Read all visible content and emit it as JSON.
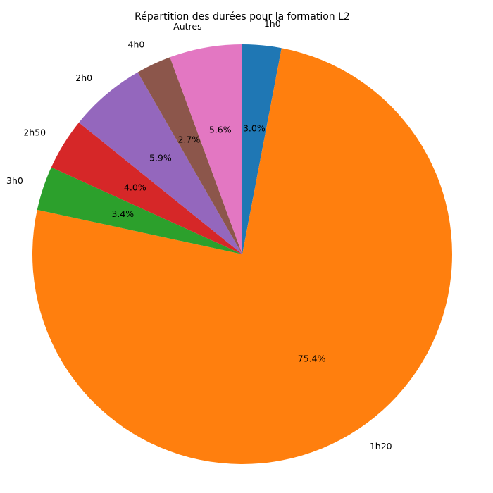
{
  "chart_data": {
    "type": "pie",
    "title": "Répartition des durées pour la formation L2",
    "start_angle_deg": 90,
    "direction": "clockwise",
    "slices": [
      {
        "label": "1h0",
        "value": 3.0,
        "pct_label": "3.0%",
        "color": "#1f77b4"
      },
      {
        "label": "1h20",
        "value": 75.4,
        "pct_label": "75.4%",
        "color": "#ff7f0e"
      },
      {
        "label": "3h0",
        "value": 3.4,
        "pct_label": "3.4%",
        "color": "#2ca02c"
      },
      {
        "label": "2h50",
        "value": 4.0,
        "pct_label": "4.0%",
        "color": "#d62728"
      },
      {
        "label": "2h0",
        "value": 5.9,
        "pct_label": "5.9%",
        "color": "#9467bd"
      },
      {
        "label": "4h0",
        "value": 2.7,
        "pct_label": "2.7%",
        "color": "#8c564b"
      },
      {
        "label": "Autres",
        "value": 5.6,
        "pct_label": "5.6%",
        "color": "#e377c2"
      }
    ]
  }
}
